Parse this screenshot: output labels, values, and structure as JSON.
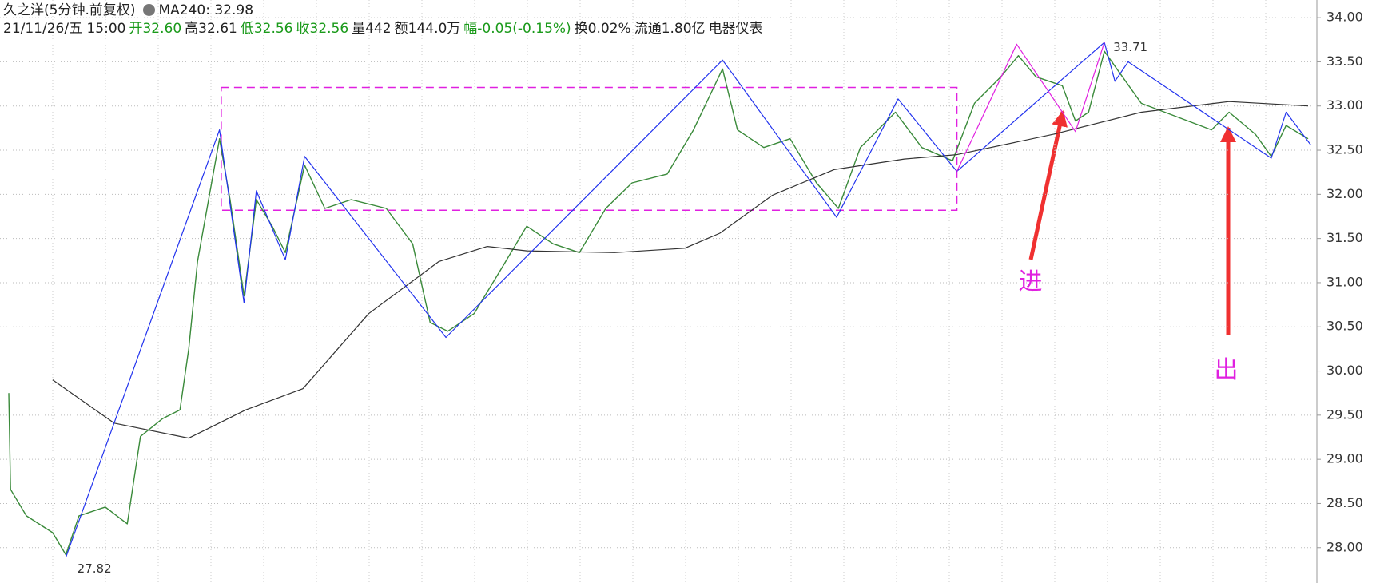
{
  "chart_data": {
    "type": "line",
    "header": {
      "title": "久之洋(5分钟.前复权)",
      "ma": "MA240: 32.98",
      "items": [
        {
          "text": "21/11/26/五 15:00",
          "color": "#222222"
        },
        {
          "text": "开32.60",
          "color": "#1a9a1a"
        },
        {
          "text": "高32.61",
          "color": "#222222"
        },
        {
          "text": "低32.56",
          "color": "#1a9a1a"
        },
        {
          "text": "收32.56",
          "color": "#1a9a1a"
        },
        {
          "text": "量442",
          "color": "#222222"
        },
        {
          "text": "额144.0万",
          "color": "#222222"
        },
        {
          "text": "幅-0.05(-0.15%)",
          "color": "#1a9a1a"
        },
        {
          "text": "换0.02%",
          "color": "#222222"
        },
        {
          "text": "流通1.80亿",
          "color": "#222222"
        },
        {
          "text": "电器仪表",
          "color": "#222222"
        }
      ]
    },
    "xlim": [
      0,
      1500
    ],
    "ylim": [
      27.6,
      34.2
    ],
    "yticks": [
      {
        "value": 28,
        "label": "28.00"
      },
      {
        "value": 28.5,
        "label": "28.50"
      },
      {
        "value": 29,
        "label": "29.00"
      },
      {
        "value": 29.5,
        "label": "29.50"
      },
      {
        "value": 30,
        "label": "30.00"
      },
      {
        "value": 30.5,
        "label": "30.50"
      },
      {
        "value": 31,
        "label": "31.00"
      },
      {
        "value": 31.5,
        "label": "31.50"
      },
      {
        "value": 32,
        "label": "32.00"
      },
      {
        "value": 32.5,
        "label": "32.50"
      },
      {
        "value": 33,
        "label": "33.00"
      },
      {
        "value": 33.5,
        "label": "33.50"
      },
      {
        "value": 34,
        "label": "34.00"
      }
    ],
    "grid": true,
    "series": [
      {
        "color": "#3a8a3a",
        "width": 1.4,
        "x": [
          10,
          12,
          30,
          60,
          75,
          90,
          120,
          145,
          160,
          185,
          205,
          215,
          225,
          250,
          262,
          278,
          292,
          310,
          325,
          347,
          370,
          400,
          440,
          470,
          490,
          510,
          540,
          570,
          600,
          630,
          660,
          690,
          720,
          760,
          790,
          823,
          840,
          870,
          900,
          930,
          955,
          980,
          1020,
          1050,
          1085,
          1110,
          1140,
          1160,
          1180,
          1210,
          1225,
          1240,
          1258,
          1275,
          1300,
          1340,
          1380,
          1400,
          1430,
          1448,
          1465,
          1490
        ],
        "values": [
          29.75,
          28.66,
          28.36,
          28.17,
          27.92,
          28.36,
          28.46,
          28.27,
          29.26,
          29.46,
          29.56,
          30.25,
          31.24,
          32.63,
          31.94,
          30.85,
          31.94,
          31.64,
          31.34,
          32.33,
          31.84,
          31.94,
          31.84,
          31.44,
          30.55,
          30.45,
          30.65,
          31.14,
          31.64,
          31.44,
          31.34,
          31.84,
          32.13,
          32.23,
          32.73,
          33.42,
          32.73,
          32.53,
          32.63,
          32.13,
          31.84,
          32.53,
          32.93,
          32.53,
          32.38,
          33.03,
          33.33,
          33.57,
          33.33,
          33.23,
          32.83,
          32.93,
          33.62,
          33.38,
          33.03,
          32.88,
          32.73,
          32.93,
          32.68,
          32.43,
          32.78,
          32.63
        ]
      },
      {
        "color": "#333333",
        "width": 1.2,
        "x": [
          60,
          130,
          215,
          280,
          345,
          420,
          500,
          555,
          600,
          700,
          780,
          820,
          880,
          950,
          1030,
          1090,
          1200,
          1300,
          1400,
          1490
        ],
        "values": [
          29.9,
          29.41,
          29.24,
          29.56,
          29.8,
          30.65,
          31.24,
          31.41,
          31.36,
          31.34,
          31.39,
          31.56,
          31.99,
          32.28,
          32.4,
          32.45,
          32.68,
          32.93,
          33.05,
          33.0
        ]
      },
      {
        "color": "#2233ee",
        "width": 1.2,
        "x": [
          75,
          250,
          278,
          292,
          325,
          347,
          508,
          823,
          953,
          1023,
          1090,
          1258,
          1270,
          1285,
          1448,
          1465,
          1493
        ],
        "values": [
          27.89,
          32.73,
          30.77,
          32.04,
          31.26,
          32.43,
          30.38,
          33.52,
          31.74,
          33.08,
          32.26,
          33.72,
          33.28,
          33.5,
          32.41,
          32.93,
          32.56
        ]
      },
      {
        "color": "#e020e0",
        "width": 1.2,
        "x": [
          1090,
          1158,
          1225,
          1258
        ],
        "values": [
          32.26,
          33.7,
          32.71,
          33.72
        ]
      }
    ],
    "box": {
      "xlim": [
        252,
        1090
      ],
      "ylim": [
        31.82,
        33.21
      ],
      "color": "#e020e0"
    },
    "annotations": [
      {
        "text": "33.71",
        "x": 1268,
        "y": 33.66,
        "color": "#333333",
        "size": 15
      },
      {
        "text": "27.82",
        "x": 88,
        "y": 27.76,
        "color": "#333333",
        "size": 15
      },
      {
        "text": "进",
        "x": 1160,
        "y": 31.0,
        "color": "#e020e0",
        "size": 30
      },
      {
        "text": "出",
        "x": 1383,
        "y": 30.0,
        "color": "#e020e0",
        "size": 30
      }
    ]
  }
}
